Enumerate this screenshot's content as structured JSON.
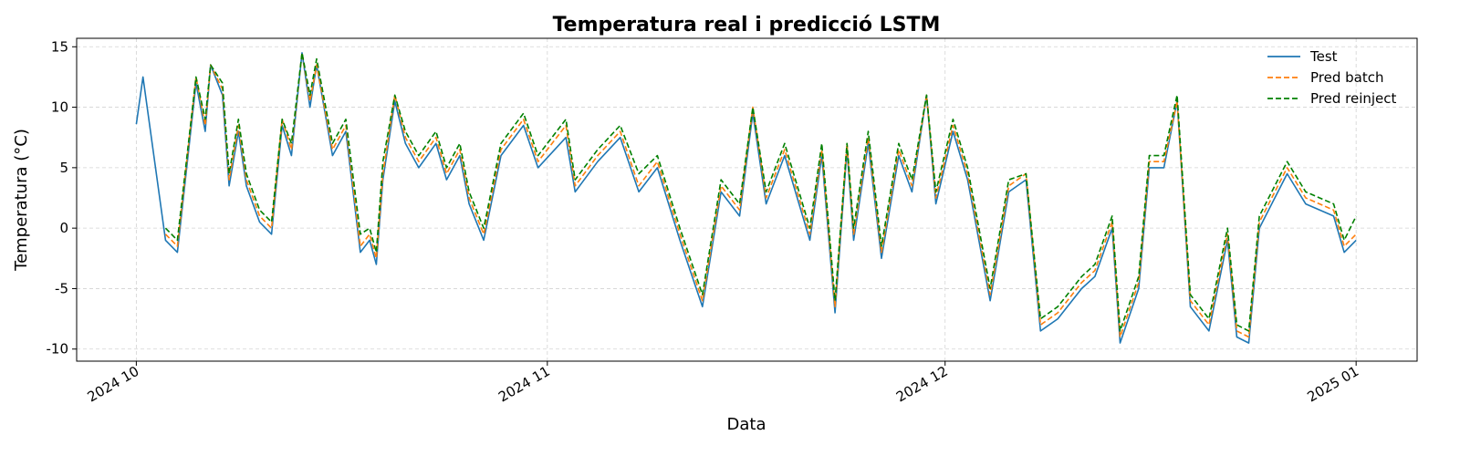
{
  "chart_data": {
    "type": "line",
    "title": "Temperatura real i predicció LSTM",
    "xlabel": "Data",
    "ylabel": "Temperatura (°C)",
    "x": [
      0,
      0.5,
      2.2,
      3.1,
      4.5,
      5.2,
      5.6,
      6.5,
      7,
      7.7,
      8.3,
      9.3,
      10.2,
      11,
      11.7,
      12.5,
      13.1,
      13.6,
      14.8,
      15.8,
      16.9,
      17.6,
      18.1,
      18.6,
      19.5,
      20.3,
      21.3,
      22.6,
      23.4,
      24.4,
      25.1,
      26.2,
      27.5,
      29.2,
      30.3,
      32.4,
      33.1,
      34.8,
      36.5,
      37.9,
      39.3,
      41,
      42.7,
      44.1,
      45.5,
      46.5,
      47.5,
      48.9,
      50.8,
      51.7,
      52.7,
      53.6,
      54.1,
      55.2,
      56.2,
      57.5,
      58.5,
      59.6,
      60.3,
      61.6,
      62.7,
      64.4,
      65.8,
      67.1,
      68.2,
      69.5,
      71.3,
      72.3,
      73.6,
      74.2,
      75.6,
      76.4,
      77.5,
      78.5,
      79.5,
      80.9,
      82.3,
      83,
      83.9,
      84.7,
      86.8,
      88.2,
      90.3,
      91.1,
      92
    ],
    "series": [
      {
        "name": "Test",
        "color": "#1f77b4",
        "dash": false,
        "values": [
          8.6,
          12.5,
          -1,
          -2,
          12,
          8,
          13.5,
          11,
          3.5,
          8,
          3.5,
          0.5,
          -0.5,
          8.5,
          6,
          14.5,
          10,
          13.5,
          6,
          8,
          -2,
          -1,
          -3,
          4,
          10.5,
          7,
          5,
          7,
          4,
          6,
          2,
          -1,
          6,
          8.5,
          5,
          7.5,
          3,
          5.5,
          7.5,
          3,
          5,
          -1,
          -6.5,
          3,
          1,
          9.5,
          2,
          6,
          -1,
          6,
          -7,
          6.5,
          -1,
          7,
          -2.5,
          6,
          3,
          11,
          2,
          8,
          4,
          -6,
          3,
          4,
          -8.5,
          -7.5,
          -5,
          -4,
          0,
          -9.5,
          -5,
          5,
          5,
          10.5,
          -6.5,
          -8.5,
          -1,
          -9,
          -9.5,
          0,
          4.5,
          2,
          1,
          -2,
          -1
        ]
      },
      {
        "name": "Pred batch",
        "color": "#ff7f0e",
        "dash": true,
        "values": [
          null,
          null,
          -0.5,
          -1.5,
          12.5,
          8.5,
          13.5,
          11.5,
          4,
          8.5,
          4,
          1,
          0,
          9,
          6.5,
          14.5,
          10.5,
          13.5,
          6.5,
          8.5,
          -1.5,
          -0.5,
          -2.5,
          4.5,
          11,
          7.5,
          5.5,
          7.5,
          4.5,
          6.5,
          2.5,
          -0.5,
          6.5,
          9,
          5.5,
          8.5,
          3.5,
          6,
          8,
          3.5,
          5.5,
          -0.5,
          -6,
          3.5,
          1.5,
          10,
          2.5,
          6.5,
          -0.5,
          6.5,
          -6.5,
          7,
          -0.5,
          7.5,
          -2,
          6.5,
          3.5,
          11,
          2.5,
          8.5,
          4.5,
          -5.5,
          3.5,
          4.5,
          -8,
          -7,
          -4.5,
          -3.5,
          0.5,
          -9,
          -4.5,
          5.5,
          5.5,
          10.5,
          -6,
          -8,
          -0.5,
          -8.5,
          -9,
          0.5,
          5,
          2.5,
          1.5,
          -1.5,
          -0.5
        ]
      },
      {
        "name": "Pred reinject",
        "color": "#008000",
        "dash": true,
        "values": [
          null,
          null,
          0,
          -1,
          12.5,
          9,
          13.5,
          12,
          4.5,
          9,
          4.5,
          1.5,
          0.5,
          9,
          7,
          14.5,
          11,
          14,
          7,
          9,
          -0.5,
          0,
          -2,
          5.5,
          11,
          8,
          6,
          8,
          5,
          7,
          3,
          0,
          7,
          9.5,
          6,
          9,
          4,
          6.5,
          8.5,
          4.5,
          6,
          0,
          -5.5,
          4,
          2,
          10,
          3,
          7,
          0,
          7,
          -6,
          7,
          0,
          8,
          -1.5,
          7,
          4,
          11,
          3,
          9,
          5,
          -5,
          4,
          4.5,
          -7.5,
          -6.5,
          -4,
          -3,
          1,
          -8.5,
          -4,
          6,
          6,
          11,
          -5.5,
          -7.5,
          0,
          -8,
          -8.5,
          1,
          5.5,
          3,
          2,
          -1,
          1
        ]
      }
    ],
    "xlim": [
      -4.5,
      96.6
    ],
    "ylim": [
      -11,
      15.7
    ],
    "xticks": [
      {
        "value": 0,
        "label": "2024 10"
      },
      {
        "value": 31,
        "label": "2024 11"
      },
      {
        "value": 61,
        "label": "2024 12"
      },
      {
        "value": 92,
        "label": "2025 01"
      }
    ],
    "yticks": [
      -10,
      -5,
      0,
      5,
      10,
      15
    ],
    "grid": true,
    "legend": "upper right"
  }
}
